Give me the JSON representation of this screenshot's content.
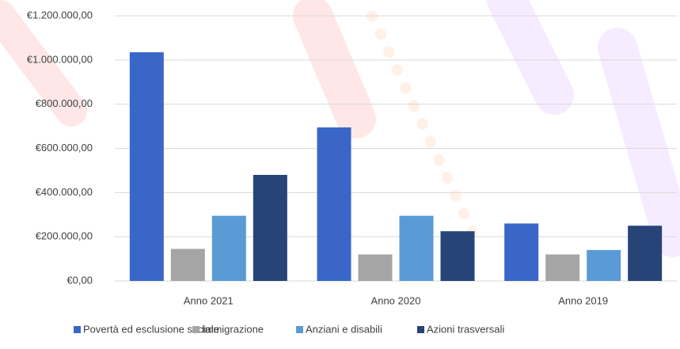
{
  "chart_data": {
    "type": "bar",
    "categories": [
      "Anno 2021",
      "Anno 2020",
      "Anno 2019"
    ],
    "series": [
      {
        "name": "Povertà ed esclusione sociale",
        "color": "#3a66c8",
        "values": [
          1035000,
          695000,
          260000
        ]
      },
      {
        "name": "Immigrazione",
        "color": "#a5a5a5",
        "values": [
          145000,
          120000,
          120000
        ]
      },
      {
        "name": "Anziani e disabili",
        "color": "#5b9bd5",
        "values": [
          295000,
          295000,
          140000
        ]
      },
      {
        "name": "Azioni trasversali",
        "color": "#264478",
        "values": [
          480000,
          225000,
          250000
        ]
      }
    ],
    "ylim": [
      0,
      1200000
    ],
    "yticks": [
      {
        "value": 0,
        "label": "€0,00"
      },
      {
        "value": 200000,
        "label": "€200.000,00"
      },
      {
        "value": 400000,
        "label": "€400.000,00"
      },
      {
        "value": 600000,
        "label": "€600.000,00"
      },
      {
        "value": 800000,
        "label": "€800.000,00"
      },
      {
        "value": 1000000,
        "label": "€1.000.000,00"
      },
      {
        "value": 1200000,
        "label": "€1.200.000,00"
      }
    ],
    "grid": true,
    "legend": "bottom"
  }
}
